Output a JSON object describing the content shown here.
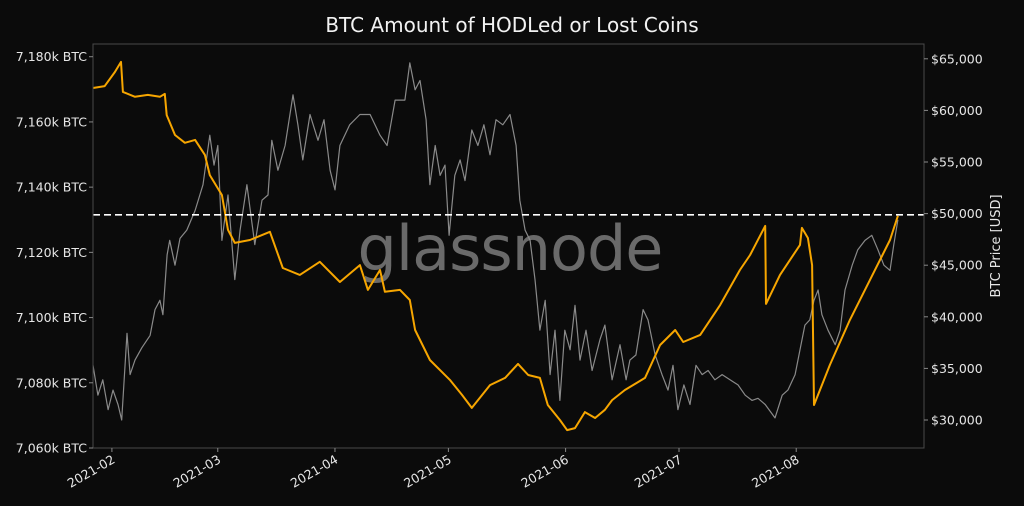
{
  "chart_data": {
    "type": "line",
    "title": "BTC Amount of HODLed or Lost Coins",
    "watermark": "glassnode",
    "x_unit": "day of year 2021 (0 = 2021-01-01)",
    "xlim": [
      26,
      245.8
    ],
    "x_ticks": [
      {
        "day": 31,
        "label": "2021-02"
      },
      {
        "day": 59,
        "label": "2021-03"
      },
      {
        "day": 90,
        "label": "2021-04"
      },
      {
        "day": 120,
        "label": "2021-05"
      },
      {
        "day": 151,
        "label": "2021-06"
      },
      {
        "day": 181,
        "label": "2021-07"
      },
      {
        "day": 212,
        "label": "2021-08"
      }
    ],
    "y_left": {
      "label": "",
      "lim": [
        7060,
        7183.9
      ],
      "ticks": [
        {
          "value": 7060,
          "label": "7,060k BTC"
        },
        {
          "value": 7080,
          "label": "7,080k BTC"
        },
        {
          "value": 7100,
          "label": "7,100k BTC"
        },
        {
          "value": 7120,
          "label": "7,120k BTC"
        },
        {
          "value": 7140,
          "label": "7,140k BTC"
        },
        {
          "value": 7160,
          "label": "7,160k BTC"
        },
        {
          "value": 7180,
          "label": "7,180k BTC"
        }
      ]
    },
    "y_right": {
      "label": "BTC Price [USD]",
      "lim": [
        27287,
        66434
      ],
      "ticks": [
        {
          "value": 30000,
          "label": "$30,000"
        },
        {
          "value": 35000,
          "label": "$35,000"
        },
        {
          "value": 40000,
          "label": "$40,000"
        },
        {
          "value": 45000,
          "label": "$45,000"
        },
        {
          "value": 50000,
          "label": "$50,000"
        },
        {
          "value": 55000,
          "label": "$55,000"
        },
        {
          "value": 60000,
          "label": "$60,000"
        },
        {
          "value": 65000,
          "label": "$65,000"
        }
      ]
    },
    "reference_line": {
      "axis": "left",
      "value": 7131.5,
      "color": "#ffffff",
      "style": "dashed"
    },
    "grid": false,
    "series": [
      {
        "name": "HODLed or Lost Coins",
        "axis": "left",
        "color": "#f7a600",
        "unit": "k BTC",
        "points": [
          [
            26.0,
            7170.4
          ],
          [
            29.1,
            7171.0
          ],
          [
            31.8,
            7175.3
          ],
          [
            33.4,
            7178.4
          ],
          [
            33.9,
            7169.2
          ],
          [
            37.1,
            7167.7
          ],
          [
            40.5,
            7168.3
          ],
          [
            43.7,
            7167.7
          ],
          [
            45.0,
            7168.6
          ],
          [
            45.5,
            7162.1
          ],
          [
            47.7,
            7156.0
          ],
          [
            50.3,
            7153.6
          ],
          [
            53.0,
            7154.5
          ],
          [
            55.6,
            7149.9
          ],
          [
            56.9,
            7143.7
          ],
          [
            60.1,
            7137.6
          ],
          [
            61.7,
            7126.9
          ],
          [
            63.5,
            7122.9
          ],
          [
            67.5,
            7123.8
          ],
          [
            70.7,
            7125.3
          ],
          [
            72.8,
            7126.3
          ],
          [
            76.2,
            7115.2
          ],
          [
            80.7,
            7113.1
          ],
          [
            86.0,
            7117.1
          ],
          [
            91.3,
            7110.9
          ],
          [
            96.6,
            7116.1
          ],
          [
            98.7,
            7108.5
          ],
          [
            101.9,
            7114.6
          ],
          [
            103.2,
            7107.9
          ],
          [
            107.2,
            7108.5
          ],
          [
            109.8,
            7105.4
          ],
          [
            111.2,
            7096.2
          ],
          [
            115.1,
            7087.0
          ],
          [
            120.4,
            7080.9
          ],
          [
            123.6,
            7076.3
          ],
          [
            126.2,
            7072.3
          ],
          [
            131.0,
            7079.3
          ],
          [
            135.0,
            7081.5
          ],
          [
            138.4,
            7085.8
          ],
          [
            141.1,
            7082.4
          ],
          [
            144.2,
            7081.5
          ],
          [
            146.3,
            7073.2
          ],
          [
            149.5,
            7068.6
          ],
          [
            151.4,
            7065.5
          ],
          [
            153.5,
            7066.1
          ],
          [
            156.1,
            7071.0
          ],
          [
            158.8,
            7069.2
          ],
          [
            161.4,
            7071.7
          ],
          [
            163.3,
            7074.7
          ],
          [
            166.7,
            7077.8
          ],
          [
            172.0,
            7081.5
          ],
          [
            176.0,
            7091.6
          ],
          [
            180.0,
            7096.2
          ],
          [
            182.1,
            7092.5
          ],
          [
            186.6,
            7094.7
          ],
          [
            191.9,
            7103.9
          ],
          [
            197.1,
            7114.6
          ],
          [
            199.8,
            7119.2
          ],
          [
            203.8,
            7128.1
          ],
          [
            204.0,
            7104.2
          ],
          [
            207.7,
            7113.1
          ],
          [
            213.0,
            7122.3
          ],
          [
            213.5,
            7127.5
          ],
          [
            215.1,
            7124.4
          ],
          [
            216.2,
            7116.1
          ],
          [
            216.7,
            7073.2
          ],
          [
            220.9,
            7085.5
          ],
          [
            226.2,
            7099.3
          ],
          [
            231.5,
            7111.5
          ],
          [
            236.8,
            7123.8
          ],
          [
            238.9,
            7131.2
          ]
        ]
      },
      {
        "name": "BTC Price",
        "axis": "right",
        "color": "#8a8a8a",
        "unit": "USD",
        "points": [
          [
            26.0,
            35300
          ],
          [
            27.3,
            32400
          ],
          [
            28.6,
            33900
          ],
          [
            30.0,
            31000
          ],
          [
            31.3,
            32900
          ],
          [
            32.6,
            31500
          ],
          [
            33.6,
            30000
          ],
          [
            35.0,
            38400
          ],
          [
            35.8,
            34400
          ],
          [
            37.1,
            35800
          ],
          [
            38.9,
            37000
          ],
          [
            41.1,
            38200
          ],
          [
            42.4,
            40700
          ],
          [
            43.7,
            41600
          ],
          [
            44.5,
            40200
          ],
          [
            45.6,
            46000
          ],
          [
            46.3,
            47400
          ],
          [
            47.7,
            45000
          ],
          [
            49.0,
            47600
          ],
          [
            50.8,
            48400
          ],
          [
            53.0,
            50300
          ],
          [
            55.1,
            52800
          ],
          [
            56.9,
            57600
          ],
          [
            58.0,
            54700
          ],
          [
            59.0,
            56600
          ],
          [
            60.1,
            47400
          ],
          [
            61.7,
            51800
          ],
          [
            63.5,
            43600
          ],
          [
            64.9,
            48400
          ],
          [
            66.7,
            52800
          ],
          [
            68.8,
            47000
          ],
          [
            70.7,
            51300
          ],
          [
            72.3,
            51800
          ],
          [
            73.3,
            57100
          ],
          [
            74.9,
            54200
          ],
          [
            76.8,
            56600
          ],
          [
            78.9,
            61500
          ],
          [
            80.2,
            58600
          ],
          [
            81.5,
            55200
          ],
          [
            83.4,
            59600
          ],
          [
            85.5,
            57100
          ],
          [
            87.1,
            59100
          ],
          [
            88.7,
            54200
          ],
          [
            90.0,
            52300
          ],
          [
            91.3,
            56600
          ],
          [
            93.9,
            58600
          ],
          [
            96.6,
            59600
          ],
          [
            99.3,
            59600
          ],
          [
            101.9,
            57600
          ],
          [
            103.8,
            56600
          ],
          [
            105.9,
            61000
          ],
          [
            108.5,
            61000
          ],
          [
            109.8,
            64600
          ],
          [
            111.2,
            62000
          ],
          [
            112.5,
            62900
          ],
          [
            114.1,
            59100
          ],
          [
            115.1,
            52800
          ],
          [
            116.5,
            56600
          ],
          [
            117.8,
            53700
          ],
          [
            119.1,
            54700
          ],
          [
            120.2,
            47900
          ],
          [
            121.7,
            53700
          ],
          [
            123.1,
            55200
          ],
          [
            124.4,
            53200
          ],
          [
            126.2,
            58100
          ],
          [
            127.8,
            56600
          ],
          [
            129.4,
            58600
          ],
          [
            131.0,
            55700
          ],
          [
            132.6,
            59100
          ],
          [
            134.4,
            58600
          ],
          [
            136.3,
            59600
          ],
          [
            137.9,
            56600
          ],
          [
            138.9,
            51300
          ],
          [
            140.3,
            48400
          ],
          [
            141.6,
            47400
          ],
          [
            142.9,
            43600
          ],
          [
            144.2,
            38700
          ],
          [
            145.6,
            41600
          ],
          [
            146.9,
            34400
          ],
          [
            148.2,
            38700
          ],
          [
            149.5,
            31900
          ],
          [
            150.8,
            38700
          ],
          [
            152.2,
            36800
          ],
          [
            153.5,
            41100
          ],
          [
            154.8,
            35800
          ],
          [
            156.4,
            38700
          ],
          [
            158.0,
            34800
          ],
          [
            160.1,
            37800
          ],
          [
            161.4,
            39200
          ],
          [
            163.3,
            33900
          ],
          [
            165.4,
            37300
          ],
          [
            167.0,
            33900
          ],
          [
            168.0,
            35800
          ],
          [
            169.6,
            36300
          ],
          [
            171.5,
            40700
          ],
          [
            172.8,
            39700
          ],
          [
            174.7,
            36300
          ],
          [
            176.5,
            34400
          ],
          [
            178.1,
            32900
          ],
          [
            179.4,
            35300
          ],
          [
            180.7,
            31000
          ],
          [
            182.3,
            33400
          ],
          [
            183.9,
            31500
          ],
          [
            185.5,
            35300
          ],
          [
            187.1,
            34400
          ],
          [
            188.7,
            34800
          ],
          [
            190.5,
            33900
          ],
          [
            192.4,
            34400
          ],
          [
            194.5,
            33900
          ],
          [
            196.6,
            33400
          ],
          [
            198.5,
            32400
          ],
          [
            200.3,
            31900
          ],
          [
            201.9,
            32100
          ],
          [
            203.8,
            31500
          ],
          [
            206.4,
            30200
          ],
          [
            208.3,
            32400
          ],
          [
            209.8,
            32900
          ],
          [
            211.7,
            34400
          ],
          [
            213.0,
            36800
          ],
          [
            214.3,
            39200
          ],
          [
            215.6,
            39700
          ],
          [
            216.7,
            41600
          ],
          [
            217.8,
            42600
          ],
          [
            218.8,
            40200
          ],
          [
            220.4,
            38700
          ],
          [
            222.3,
            37300
          ],
          [
            223.6,
            38700
          ],
          [
            224.9,
            42600
          ],
          [
            226.8,
            45000
          ],
          [
            228.3,
            46500
          ],
          [
            230.2,
            47400
          ],
          [
            232.0,
            47900
          ],
          [
            233.6,
            46500
          ],
          [
            235.2,
            45000
          ],
          [
            236.8,
            44500
          ],
          [
            237.8,
            47000
          ],
          [
            238.9,
            49400
          ]
        ]
      }
    ]
  }
}
